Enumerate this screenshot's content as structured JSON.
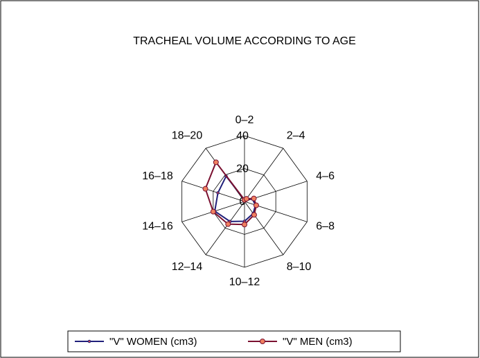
{
  "chart_data": {
    "type": "radar",
    "title": "TRACHEAL VOLUME ACCORDING TO AGE",
    "categories": [
      "0–2",
      "2–4",
      "4–6",
      "6–8",
      "8–10",
      "10–12",
      "12–14",
      "14–16",
      "16–18",
      "18–20"
    ],
    "series": [
      {
        "name": "\"V\" WOMEN (cm3)",
        "color": "#1f1f7a",
        "values": [
          1,
          2,
          5,
          7,
          9,
          12,
          15,
          19,
          17,
          19
        ]
      },
      {
        "name": "\"V\" MEN (cm3)",
        "color": "#7a1030",
        "values": [
          1,
          2,
          6,
          7.5,
          10,
          14,
          17,
          20,
          25,
          29.5
        ]
      }
    ],
    "rlim": [
      0,
      40
    ],
    "rticks": [
      0,
      20,
      40
    ],
    "legend": "bottom"
  }
}
